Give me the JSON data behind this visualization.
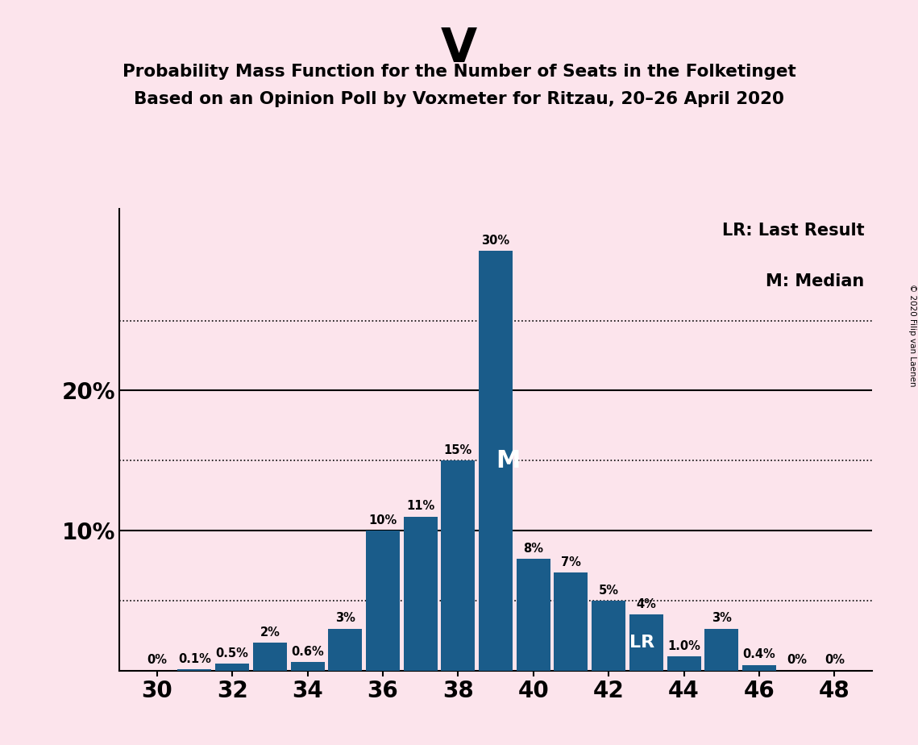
{
  "title_party": "V",
  "title_line1": "Probability Mass Function for the Number of Seats in the Folketinget",
  "title_line2": "Based on an Opinion Poll by Voxmeter for Ritzau, 20–26 April 2020",
  "copyright_text": "© 2020 Filip van Laenen",
  "legend_lr": "LR: Last Result",
  "legend_m": "M: Median",
  "background_color": "#fce4ec",
  "bar_color": "#1a5c8a",
  "seats": [
    30,
    31,
    32,
    33,
    34,
    35,
    36,
    37,
    38,
    39,
    40,
    41,
    42,
    43,
    44,
    45,
    46,
    47,
    48
  ],
  "probabilities": [
    0.0,
    0.1,
    0.5,
    2.0,
    0.6,
    3.0,
    10.0,
    11.0,
    15.0,
    30.0,
    8.0,
    7.0,
    5.0,
    4.0,
    1.0,
    3.0,
    0.4,
    0.0,
    0.0
  ],
  "labels": [
    "0%",
    "0.1%",
    "0.5%",
    "2%",
    "0.6%",
    "3%",
    "10%",
    "11%",
    "15%",
    "30%",
    "8%",
    "7%",
    "5%",
    "4%",
    "1.0%",
    "3%",
    "0.4%",
    "0%",
    "0%"
  ],
  "median_seat": 39,
  "lr_seat": 43,
  "ylim": [
    0,
    33
  ],
  "xlim": [
    29,
    49
  ],
  "xticks": [
    30,
    32,
    34,
    36,
    38,
    40,
    42,
    44,
    46,
    48
  ],
  "dotted_gridlines": [
    5,
    15,
    25
  ],
  "solid_gridlines": [
    10,
    20
  ]
}
